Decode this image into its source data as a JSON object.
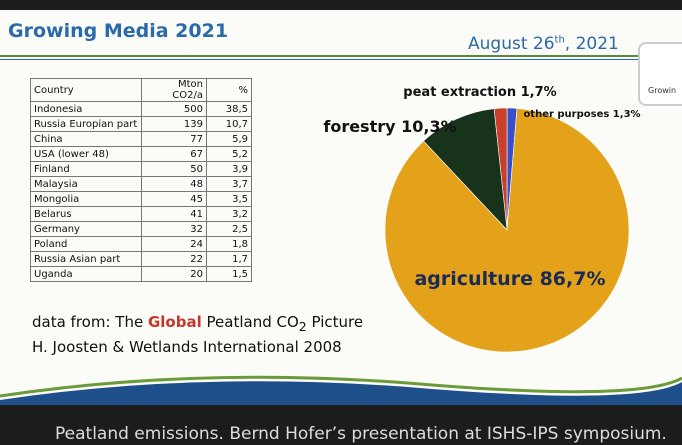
{
  "header": {
    "title": "Growing Media 2021",
    "date": [
      "August 26",
      "th",
      ", 2021"
    ],
    "logo": "Growin"
  },
  "table": {
    "header": [
      "Country",
      "Mton CO2/a",
      "%"
    ],
    "rows": [
      [
        "Indonesia",
        500,
        "38,5"
      ],
      [
        "Russia Europian part",
        139,
        "10,7"
      ],
      [
        "China",
        77,
        "5,9"
      ],
      [
        "USA (lower 48)",
        67,
        "5,2"
      ],
      [
        "Finland",
        50,
        "3,9"
      ],
      [
        "Malaysia",
        48,
        "3,7"
      ],
      [
        "Mongolia",
        45,
        "3,5"
      ],
      [
        "Belarus",
        41,
        "3,2"
      ],
      [
        "Germany",
        32,
        "2,5"
      ],
      [
        "Poland",
        24,
        "1,8"
      ],
      [
        "Russia Asian part",
        22,
        "1,7"
      ],
      [
        "Uganda",
        20,
        "1,5"
      ]
    ]
  },
  "chart_data": {
    "type": "pie",
    "values": [
      1.3,
      1.7,
      10.3,
      86.7
    ],
    "value_labels": [
      "other purposes 1,3%",
      "peat extraction 1,7%",
      "forestry 10,3%",
      "agriculture 86,7%"
    ],
    "colors": [
      "#3550c8",
      "#c8402a",
      "#17331c",
      "#e3a21a"
    ]
  },
  "source": {
    "line1": [
      "data from: The",
      "Global",
      "Peatland CO",
      "2",
      "Picture"
    ],
    "line2": "H. Joosten & Wetlands International 2008"
  },
  "caption": "Peatland emissions. Bernd Hofer’s presentation at ISHS-IPS symposium."
}
